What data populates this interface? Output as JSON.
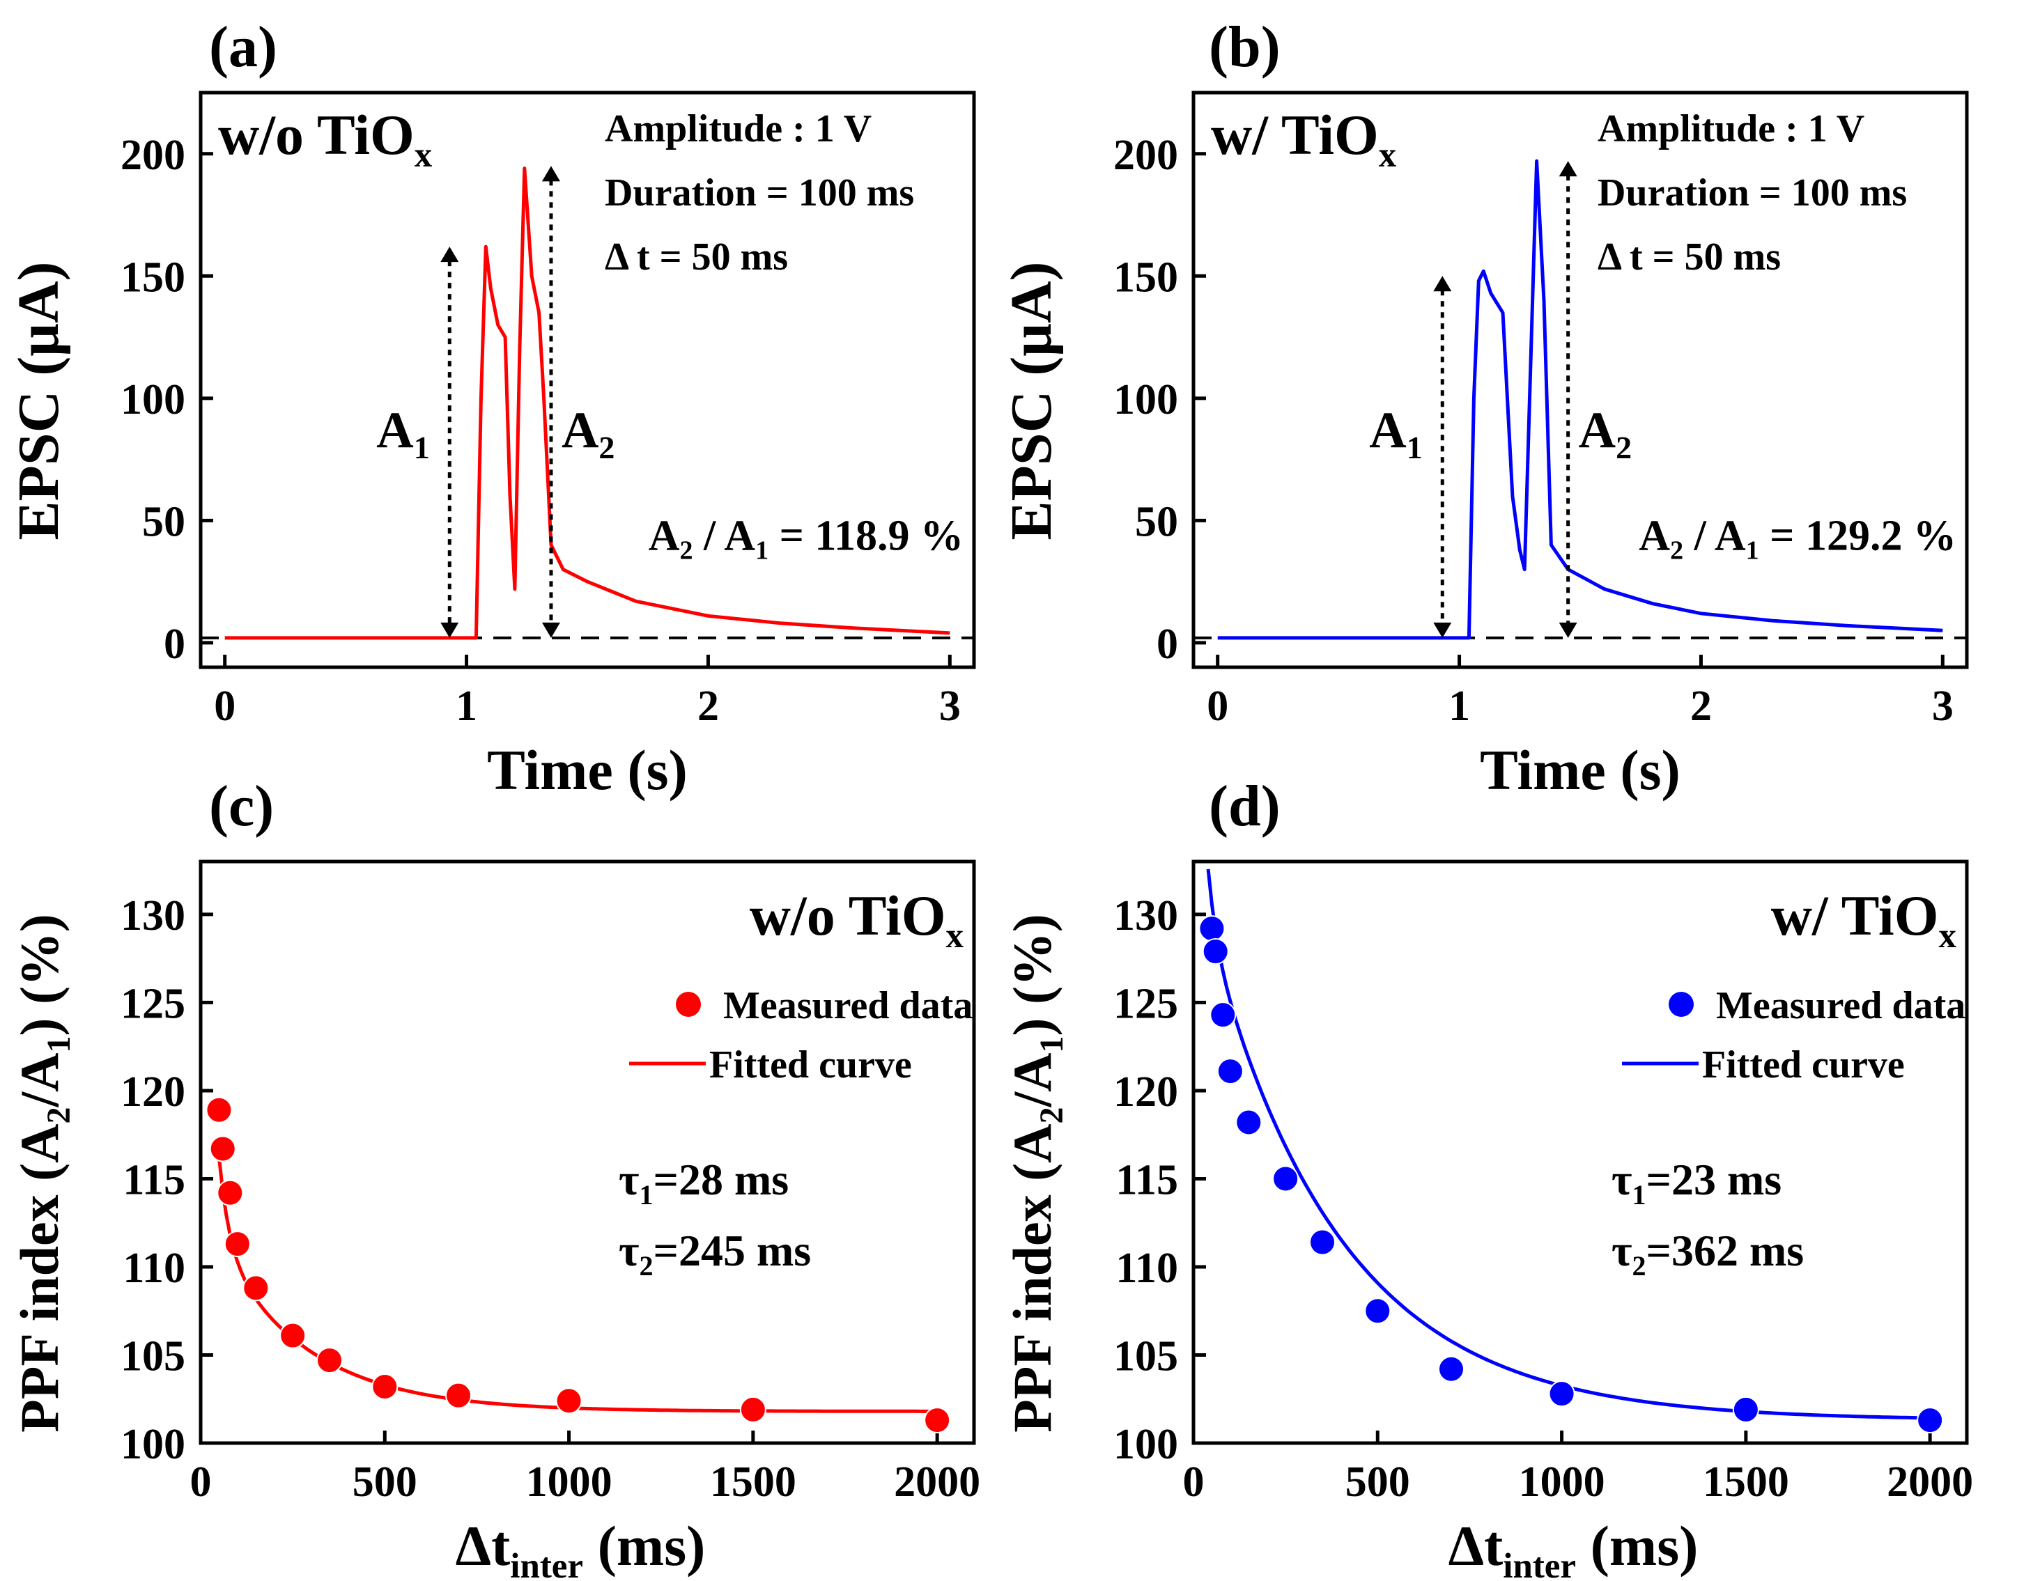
{
  "chart_data": [
    {
      "panel": "(a)",
      "type": "line",
      "sample": "w/o TiO",
      "sample_sub": "x",
      "color": "#ff0000",
      "xlabel": "Time (s)",
      "ylabel": "EPSC (μA)",
      "xlim": [
        -0.1,
        3.1
      ],
      "ylim": [
        -10,
        225
      ],
      "xticks": [
        0,
        1,
        2,
        3
      ],
      "yticks": [
        0,
        50,
        100,
        150,
        200
      ],
      "params": [
        "Amplitude : 1 V",
        "Duration = 100 ms",
        "Δ t = 50 ms"
      ],
      "ratio": {
        "a2": "A",
        "a2_sub": "2",
        "sep": " / ",
        "a1": "A",
        "a1_sub": "1",
        "value": " = 118.9 %"
      },
      "label_a1": {
        "text": "A",
        "sub": "1"
      },
      "label_a2": {
        "text": "A",
        "sub": "2"
      },
      "a1_x": 0.93,
      "a1_y": 162,
      "a2_x": 1.35,
      "a2_y": 195,
      "baseline": 2,
      "x": [
        0,
        0.5,
        1.0,
        1.04,
        1.06,
        1.08,
        1.1,
        1.13,
        1.16,
        1.18,
        1.2,
        1.22,
        1.24,
        1.27,
        1.3,
        1.32,
        1.35,
        1.4,
        1.5,
        1.7,
        2.0,
        2.3,
        2.6,
        3.0
      ],
      "y": [
        2,
        2,
        2,
        2,
        100,
        162,
        145,
        130,
        125,
        60,
        22,
        120,
        194,
        150,
        135,
        100,
        40,
        30,
        25,
        17,
        11,
        8,
        6,
        4
      ]
    },
    {
      "panel": "(b)",
      "type": "line",
      "sample": "w/ TiO",
      "sample_sub": "x",
      "color": "#0000ff",
      "xlabel": "Time (s)",
      "ylabel": "EPSC (μA)",
      "xlim": [
        -0.1,
        3.1
      ],
      "ylim": [
        -10,
        225
      ],
      "xticks": [
        0,
        1,
        2,
        3
      ],
      "yticks": [
        0,
        50,
        100,
        150,
        200
      ],
      "params": [
        "Amplitude : 1 V",
        "Duration = 100 ms",
        "Δ t = 50 ms"
      ],
      "ratio": {
        "a2": "A",
        "a2_sub": "2",
        "sep": " / ",
        "a1": "A",
        "a1_sub": "1",
        "value": " = 129.2 %"
      },
      "label_a1": {
        "text": "A",
        "sub": "1"
      },
      "label_a2": {
        "text": "A",
        "sub": "2"
      },
      "a1_x": 0.93,
      "a1_y": 150,
      "a2_x": 1.45,
      "a2_y": 197,
      "baseline": 2,
      "x": [
        0,
        0.5,
        1.0,
        1.04,
        1.06,
        1.08,
        1.1,
        1.13,
        1.18,
        1.22,
        1.25,
        1.27,
        1.3,
        1.32,
        1.35,
        1.38,
        1.45,
        1.6,
        1.8,
        2.0,
        2.3,
        2.6,
        3.0
      ],
      "y": [
        2,
        2,
        2,
        2,
        100,
        148,
        152,
        143,
        135,
        60,
        38,
        30,
        130,
        197,
        140,
        40,
        30,
        22,
        16,
        12,
        9,
        7,
        5
      ]
    },
    {
      "panel": "(c)",
      "type": "scatter",
      "sample": "w/o TiO",
      "sample_sub": "x",
      "color": "#ff0000",
      "xlabel_main": "Δt",
      "xlabel_sub": "inter",
      "xlabel_unit": " (ms)",
      "ylabel_main": "PPF index (A",
      "ylabel_sub1": "2",
      "ylabel_mid": "/A",
      "ylabel_sub2": "1",
      "ylabel_end": ") (%)",
      "xlim": [
        0,
        2100
      ],
      "ylim": [
        100,
        133
      ],
      "xticks": [
        0,
        500,
        1000,
        1500,
        2000
      ],
      "yticks": [
        100,
        105,
        110,
        115,
        120,
        125,
        130
      ],
      "legend_measured": "Measured data",
      "legend_fitted": "Fitted curve",
      "tau1_label": "τ",
      "tau1_sub": "1",
      "tau1_value": "=28 ms",
      "tau2_label": "τ",
      "tau2_sub": "2",
      "tau2_value": "=245 ms",
      "x": [
        50,
        60,
        80,
        100,
        150,
        250,
        350,
        500,
        700,
        1000,
        1500,
        2000
      ],
      "y": [
        118.9,
        116.7,
        114.2,
        111.3,
        108.8,
        106.1,
        104.7,
        103.2,
        102.7,
        102.4,
        101.9,
        101.3
      ],
      "fit": {
        "y0": 101.8,
        "A1": 30,
        "t1": 28,
        "A2": 11.5,
        "t2": 245,
        "x_start": 50,
        "x_end": 2000
      }
    },
    {
      "panel": "(d)",
      "type": "scatter",
      "sample": "w/ TiO",
      "sample_sub": "x",
      "color": "#0000ff",
      "xlabel_main": "Δt",
      "xlabel_sub": "inter",
      "xlabel_unit": " (ms)",
      "ylabel_main": "PPF index (A",
      "ylabel_sub1": "2",
      "ylabel_mid": "/A",
      "ylabel_sub2": "1",
      "ylabel_end": ") (%)",
      "xlim": [
        0,
        2100
      ],
      "ylim": [
        100,
        133
      ],
      "xticks": [
        0,
        500,
        1000,
        1500,
        2000
      ],
      "yticks": [
        100,
        105,
        110,
        115,
        120,
        125,
        130
      ],
      "legend_measured": "Measured data",
      "legend_fitted": "Fitted curve",
      "tau1_label": "τ",
      "tau1_sub": "1",
      "tau1_value": "=23 ms",
      "tau2_label": "τ",
      "tau2_sub": "2",
      "tau2_value": "=362 ms",
      "x": [
        50,
        60,
        80,
        100,
        150,
        250,
        350,
        500,
        700,
        1000,
        1500,
        2000
      ],
      "y": [
        129.2,
        127.9,
        124.3,
        121.1,
        118.2,
        115.0,
        111.4,
        107.5,
        104.2,
        102.8,
        101.9,
        101.3
      ],
      "fit": {
        "y0": 101.3,
        "A1": 20,
        "t1": 23,
        "A2": 31,
        "t2": 362,
        "x_start": 40,
        "x_end": 2000
      }
    }
  ]
}
